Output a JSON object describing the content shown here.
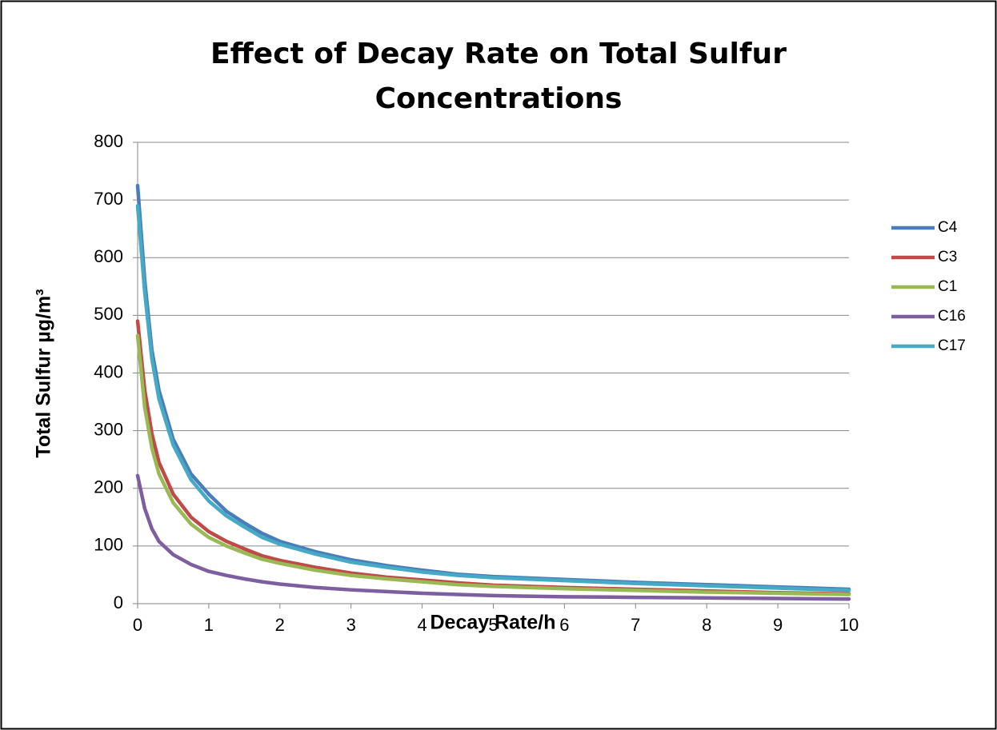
{
  "chart_data": {
    "type": "line",
    "title": "Effect of Decay Rate on Total Sulfur Concentrations",
    "xlabel": "Decay Rate/h",
    "ylabel": "Total Sulfur µg/m³",
    "x": [
      0,
      0.1,
      0.2,
      0.3,
      0.5,
      0.75,
      1,
      1.25,
      1.5,
      1.75,
      2,
      2.5,
      3,
      3.5,
      4,
      4.5,
      5,
      6,
      7,
      8,
      9,
      10
    ],
    "series": [
      {
        "name": "C4",
        "color": "#4a7ebb",
        "values": [
          725,
          560,
          440,
          370,
          285,
          225,
          190,
          160,
          140,
          122,
          108,
          90,
          76,
          66,
          58,
          51,
          47,
          42,
          37,
          33,
          29,
          25
        ]
      },
      {
        "name": "C3",
        "color": "#be4b48",
        "values": [
          490,
          370,
          295,
          245,
          190,
          150,
          125,
          108,
          95,
          83,
          75,
          63,
          53,
          46,
          41,
          36,
          32,
          28,
          25,
          22,
          19,
          17
        ]
      },
      {
        "name": "C1",
        "color": "#98b954",
        "values": [
          465,
          340,
          270,
          225,
          175,
          138,
          115,
          100,
          88,
          77,
          70,
          58,
          49,
          43,
          38,
          33,
          30,
          26,
          23,
          20,
          18,
          16
        ]
      },
      {
        "name": "C16",
        "color": "#7d5fa0",
        "values": [
          222,
          165,
          130,
          108,
          85,
          68,
          56,
          49,
          43,
          38,
          34,
          28,
          24,
          21,
          18,
          16,
          14,
          12,
          11,
          10,
          9,
          8
        ]
      },
      {
        "name": "C17",
        "color": "#46aac5",
        "values": [
          690,
          540,
          425,
          355,
          275,
          215,
          178,
          152,
          133,
          115,
          103,
          86,
          72,
          63,
          55,
          49,
          45,
          40,
          35,
          31,
          27,
          23
        ]
      }
    ],
    "xlim": [
      0,
      10
    ],
    "xticks": [
      0,
      1,
      2,
      3,
      4,
      5,
      6,
      7,
      8,
      9,
      10
    ],
    "ylim": [
      0,
      800
    ],
    "yticks": [
      0,
      100,
      200,
      300,
      400,
      500,
      600,
      700,
      800
    ],
    "grid": true,
    "legend": "right"
  }
}
